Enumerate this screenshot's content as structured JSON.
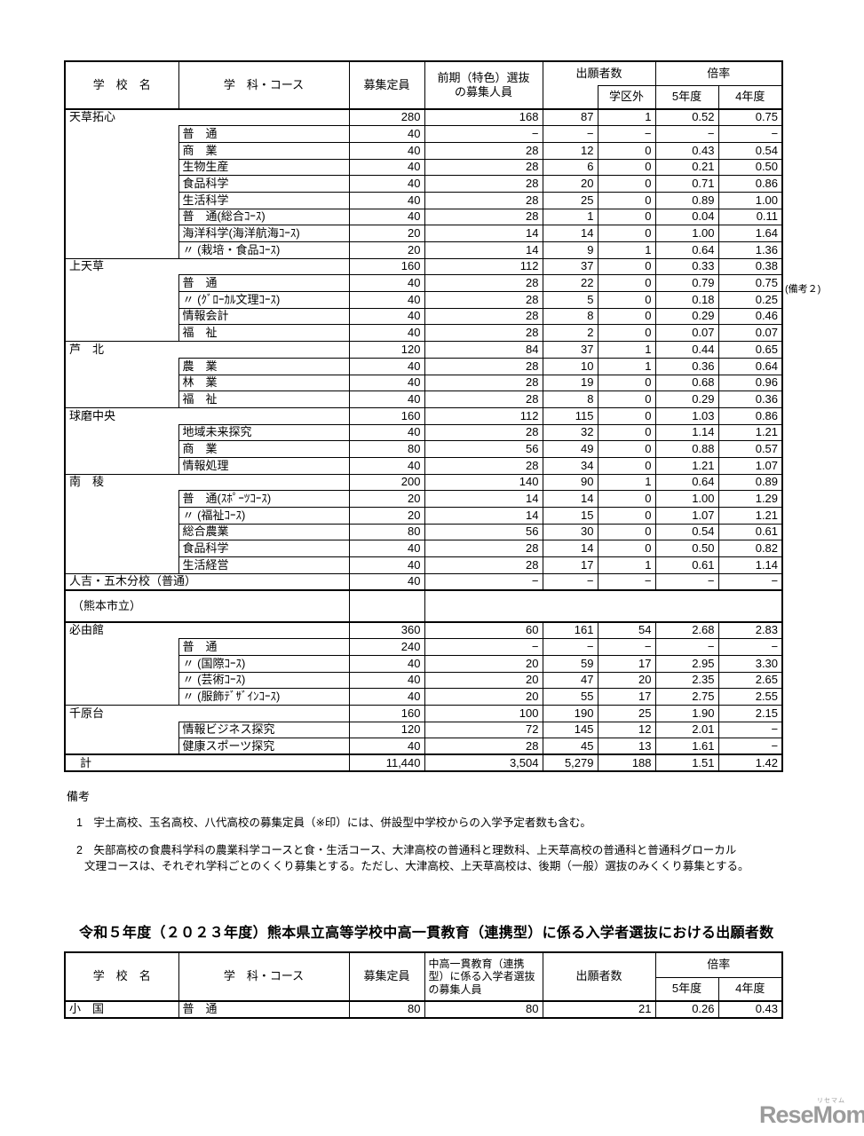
{
  "annotation_right": "(備考２)",
  "main_table": {
    "header": {
      "school": "学　校　名",
      "course": "学　科・コース",
      "capacity": "募集定員",
      "early_selection": "前期（特色）選抜\nの募集人員",
      "applicants": "出願者数",
      "out_of_district": "学区外",
      "ratio": "倍率",
      "year5": "5年度",
      "year4": "4年度"
    },
    "blocks": [
      {
        "school": "天草拓心",
        "values": [
          "280",
          "168",
          "87",
          "1",
          "0.52",
          "0.75"
        ],
        "courses": [
          {
            "name": "普　通",
            "values": [
              "40",
              "−",
              "−",
              "−",
              "−",
              "−"
            ]
          },
          {
            "name": "商　業",
            "values": [
              "40",
              "28",
              "12",
              "0",
              "0.43",
              "0.54"
            ]
          },
          {
            "name": "生物生産",
            "values": [
              "40",
              "28",
              "6",
              "0",
              "0.21",
              "0.50"
            ]
          },
          {
            "name": "食品科学",
            "values": [
              "40",
              "28",
              "20",
              "0",
              "0.71",
              "0.86"
            ]
          },
          {
            "name": "生活科学",
            "values": [
              "40",
              "28",
              "25",
              "0",
              "0.89",
              "1.00"
            ]
          },
          {
            "name": "普　通(総合ｺｰｽ)",
            "values": [
              "40",
              "28",
              "1",
              "0",
              "0.04",
              "0.11"
            ]
          },
          {
            "name": "海洋科学(海洋航海ｺｰｽ)",
            "values": [
              "20",
              "14",
              "14",
              "0",
              "1.00",
              "1.64"
            ]
          },
          {
            "name": "〃 (栽培・食品ｺｰｽ)",
            "values": [
              "20",
              "14",
              "9",
              "1",
              "0.64",
              "1.36"
            ]
          }
        ]
      },
      {
        "school": "上天草",
        "values": [
          "160",
          "112",
          "37",
          "0",
          "0.33",
          "0.38"
        ],
        "courses": [
          {
            "name": "普　通",
            "values": [
              "40",
              "28",
              "22",
              "0",
              "0.79",
              "0.75"
            ]
          },
          {
            "name": "〃 (ｸﾞﾛｰｶﾙ文理ｺｰｽ)",
            "values": [
              "40",
              "28",
              "5",
              "0",
              "0.18",
              "0.25"
            ]
          },
          {
            "name": "情報会計",
            "values": [
              "40",
              "28",
              "8",
              "0",
              "0.29",
              "0.46"
            ]
          },
          {
            "name": "福　祉",
            "values": [
              "40",
              "28",
              "2",
              "0",
              "0.07",
              "0.07"
            ]
          }
        ]
      },
      {
        "school": "芦　北",
        "values": [
          "120",
          "84",
          "37",
          "1",
          "0.44",
          "0.65"
        ],
        "courses": [
          {
            "name": "農　業",
            "values": [
              "40",
              "28",
              "10",
              "1",
              "0.36",
              "0.64"
            ]
          },
          {
            "name": "林　業",
            "values": [
              "40",
              "28",
              "19",
              "0",
              "0.68",
              "0.96"
            ]
          },
          {
            "name": "福　祉",
            "values": [
              "40",
              "28",
              "8",
              "0",
              "0.29",
              "0.36"
            ]
          }
        ]
      },
      {
        "school": "球磨中央",
        "values": [
          "160",
          "112",
          "115",
          "0",
          "1.03",
          "0.86"
        ],
        "courses": [
          {
            "name": "地域未来探究",
            "values": [
              "40",
              "28",
              "32",
              "0",
              "1.14",
              "1.21"
            ]
          },
          {
            "name": "商　業",
            "values": [
              "80",
              "56",
              "49",
              "0",
              "0.88",
              "0.57"
            ]
          },
          {
            "name": "情報処理",
            "values": [
              "40",
              "28",
              "34",
              "0",
              "1.21",
              "1.07"
            ]
          }
        ]
      },
      {
        "school": "南　稜",
        "values": [
          "200",
          "140",
          "90",
          "1",
          "0.64",
          "0.89"
        ],
        "courses": [
          {
            "name": "普　通(ｽﾎﾟｰﾂｺｰｽ)",
            "values": [
              "20",
              "14",
              "14",
              "0",
              "1.00",
              "1.29"
            ]
          },
          {
            "name": "〃 (福祉ｺｰｽ)",
            "values": [
              "20",
              "14",
              "15",
              "0",
              "1.07",
              "1.21"
            ]
          },
          {
            "name": "総合農業",
            "values": [
              "80",
              "56",
              "30",
              "0",
              "0.54",
              "0.61"
            ]
          },
          {
            "name": "食品科学",
            "values": [
              "40",
              "28",
              "14",
              "0",
              "0.50",
              "0.82"
            ]
          },
          {
            "name": "生活経営",
            "values": [
              "40",
              "28",
              "17",
              "1",
              "0.61",
              "1.14"
            ]
          }
        ]
      },
      {
        "school": "人吉・五木分校（普通）",
        "values": [
          "40",
          "−",
          "−",
          "−",
          "−",
          "−"
        ],
        "courses": []
      },
      {
        "type": "city",
        "label": "（熊本市立）"
      },
      {
        "school": "必由館",
        "values": [
          "360",
          "60",
          "161",
          "54",
          "2.68",
          "2.83"
        ],
        "courses": [
          {
            "name": "普　通",
            "values": [
              "240",
              "−",
              "−",
              "−",
              "−",
              "−"
            ]
          },
          {
            "name": "〃 (国際ｺｰｽ)",
            "values": [
              "40",
              "20",
              "59",
              "17",
              "2.95",
              "3.30"
            ]
          },
          {
            "name": "〃 (芸術ｺｰｽ)",
            "values": [
              "40",
              "20",
              "47",
              "20",
              "2.35",
              "2.65"
            ]
          },
          {
            "name": "〃 (服飾ﾃﾞｻﾞｲﾝｺｰｽ)",
            "values": [
              "40",
              "20",
              "55",
              "17",
              "2.75",
              "2.55"
            ]
          }
        ]
      },
      {
        "school": "千原台",
        "values": [
          "160",
          "100",
          "190",
          "25",
          "1.90",
          "2.15"
        ],
        "courses": [
          {
            "name": "情報ビジネス探究",
            "values": [
              "120",
              "72",
              "145",
              "12",
              "2.01",
              "−"
            ]
          },
          {
            "name": "健康スポーツ探究",
            "values": [
              "40",
              "28",
              "45",
              "13",
              "1.61",
              "−"
            ]
          }
        ]
      }
    ],
    "total_row": {
      "label": "計",
      "values": [
        "11,440",
        "3,504",
        "5,279",
        "188",
        "1.51",
        "1.42"
      ]
    }
  },
  "remarks": {
    "title": "備考",
    "note1": "1　宇土高校、玉名高校、八代高校の募集定員（※印）には、併設型中学校からの入学予定者数も含む。",
    "note2a": "2　矢部高校の食農科学科の農業科学コースと食・生活コース、大津高校の普通科と理数科、上天草高校の普通科と普通科グローカル",
    "note2b": "文理コースは、それぞれ学科ごとのくくり募集とする。ただし、大津高校、上天草高校は、後期（一般）選抜のみくくり募集とする。"
  },
  "second_table": {
    "title": "令和５年度（２０２３年度）熊本県立高等学校中高一貫教育（連携型）に係る入学者選抜における出願者数",
    "header": {
      "school": "学　校　名",
      "course": "学　科・コース",
      "capacity": "募集定員",
      "selection_capacity": "中高一貫教育（連携型）に係る入学者選抜の募集人員",
      "applicants": "出願者数",
      "ratio": "倍率",
      "year5": "5年度",
      "year4": "4年度"
    },
    "row": {
      "school": "小　国",
      "course": "普　通",
      "values": [
        "80",
        "80",
        "21",
        "0.26",
        "0.43"
      ]
    }
  },
  "logo": {
    "text": "ReseMom.",
    "kana": "リセマム",
    "color": "#9b9b9b"
  }
}
